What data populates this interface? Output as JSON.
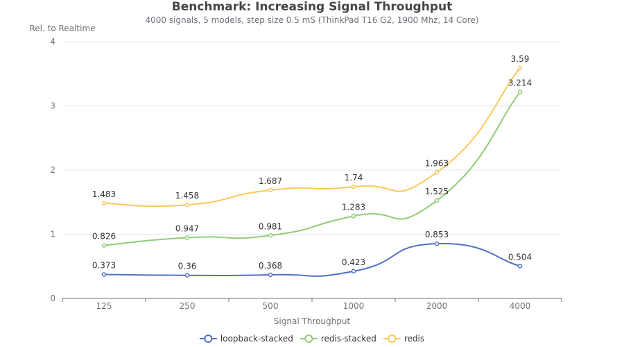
{
  "chart_data": {
    "type": "line",
    "title": "Benchmark: Increasing Signal Throughput",
    "subtitle": "4000 signals, 5 models, step size 0.5 mS (ThinkPad T16 G2, 1900 Mhz, 14 Core)",
    "xlabel": "Signal Throughput",
    "ylabel": "Rel. to Realtime",
    "categories": [
      "125",
      "250",
      "500",
      "1000",
      "2000",
      "4000"
    ],
    "y_ticks": [
      "0",
      "1",
      "2",
      "3",
      "4"
    ],
    "ylim": [
      0,
      4
    ],
    "grid": true,
    "legend_position": "bottom-center",
    "smooth": true,
    "series": [
      {
        "name": "loopback-stacked",
        "color": "#5470c6",
        "values": [
          0.373,
          0.36,
          0.368,
          0.423,
          0.853,
          0.504
        ],
        "labels": [
          "0.373",
          "0.36",
          "0.368",
          "0.423",
          "0.853",
          "0.504"
        ]
      },
      {
        "name": "redis-stacked",
        "color": "#91cc75",
        "values": [
          0.826,
          0.947,
          0.981,
          1.283,
          1.525,
          3.214
        ],
        "labels": [
          "0.826",
          "0.947",
          "0.981",
          "1.283",
          "1.525",
          "3.214"
        ]
      },
      {
        "name": "redis",
        "color": "#fac858",
        "values": [
          1.483,
          1.458,
          1.687,
          1.74,
          1.963,
          3.59
        ],
        "labels": [
          "1.483",
          "1.458",
          "1.687",
          "1.74",
          "1.963",
          "3.59"
        ]
      }
    ]
  }
}
